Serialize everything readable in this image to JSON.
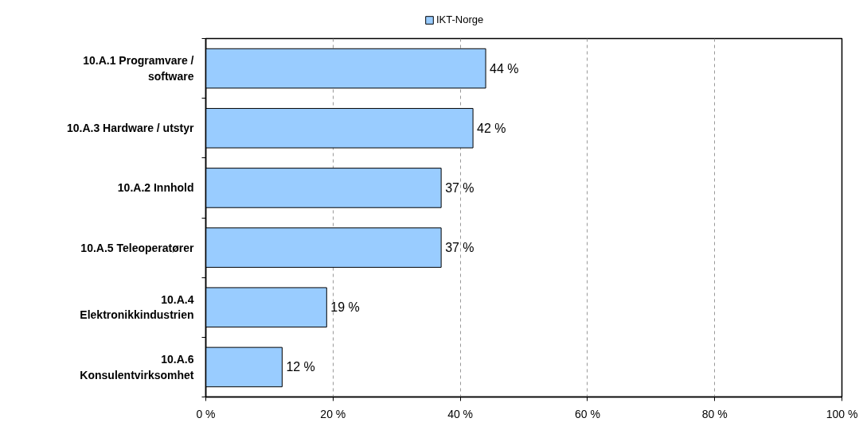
{
  "chart_data": {
    "type": "bar",
    "orientation": "horizontal",
    "categories": [
      "10.A.1 Programvare / software",
      "10.A.3 Hardware / utstyr",
      "10.A.2 Innhold",
      "10.A.5 Teleoperatører",
      "10.A.4 Elektronikkindustrien",
      "10.A.6 Konsulentvirksomhet"
    ],
    "series": [
      {
        "name": "IKT-Norge",
        "color": "#99ccff",
        "values": [
          44,
          42,
          37,
          37,
          19,
          12
        ],
        "value_labels": [
          "44 %",
          "42 %",
          "37 %",
          "37 %",
          "19 %",
          "12 %"
        ]
      }
    ],
    "xlim": [
      0,
      100
    ],
    "xticks": [
      {
        "value": 0,
        "label": "0 %"
      },
      {
        "value": 20,
        "label": "20 %"
      },
      {
        "value": 40,
        "label": "40 %"
      },
      {
        "value": 60,
        "label": "60 %"
      },
      {
        "value": 80,
        "label": "80 %"
      },
      {
        "value": 100,
        "label": "100 %"
      }
    ],
    "grid": "x",
    "legend": "top"
  }
}
